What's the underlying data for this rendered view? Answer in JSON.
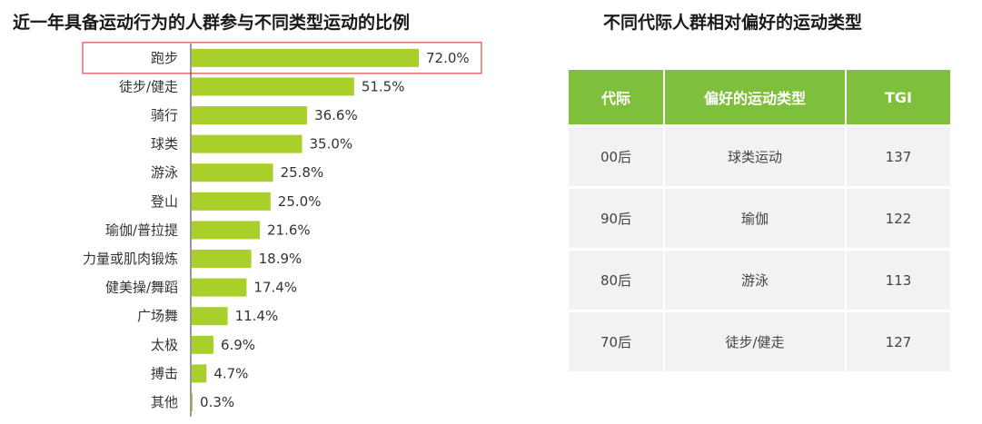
{
  "left_chart": {
    "title": "近一年具备运动行为的人群参与不同类型运动的比例"
  },
  "right_table": {
    "title": "不同代际人群相对偏好的运动类型",
    "headers": [
      "代际",
      "偏好的运动类型",
      "TGI"
    ],
    "rows": [
      [
        "00后",
        "球类运动",
        "137"
      ],
      [
        "90后",
        "瑜伽",
        "122"
      ],
      [
        "80后",
        "游泳",
        "113"
      ],
      [
        "70后",
        "徒步/健走",
        "127"
      ]
    ]
  },
  "colors": {
    "bar": "#a8cf2a",
    "header": "#7ebf3c",
    "cell": "#f2f2f2",
    "highlight": "#e05a5a",
    "axis": "#555555"
  },
  "chart_data": [
    {
      "type": "bar",
      "orientation": "horizontal",
      "title": "近一年具备运动行为的人群参与不同类型运动的比例",
      "categories": [
        "跑步",
        "徒步/健走",
        "骑行",
        "球类",
        "游泳",
        "登山",
        "瑜伽/普拉提",
        "力量或肌肉锻炼",
        "健美操/舞蹈",
        "广场舞",
        "太极",
        "搏击",
        "其他"
      ],
      "values": [
        72.0,
        51.5,
        36.6,
        35.0,
        25.8,
        25.0,
        21.6,
        18.9,
        17.4,
        11.4,
        6.9,
        4.7,
        0.3
      ],
      "value_labels": [
        "72.0%",
        "51.5%",
        "36.6%",
        "35.0%",
        "25.8%",
        "25.0%",
        "21.6%",
        "18.9%",
        "17.4%",
        "11.4%",
        "6.9%",
        "4.7%",
        "0.3%"
      ],
      "unit": "%",
      "highlighted_category": "跑步",
      "grid": false
    },
    {
      "type": "table",
      "title": "不同代际人群相对偏好的运动类型",
      "columns": [
        "代际",
        "偏好的运动类型",
        "TGI"
      ],
      "rows": [
        [
          "00后",
          "球类运动",
          137
        ],
        [
          "90后",
          "瑜伽",
          122
        ],
        [
          "80后",
          "游泳",
          113
        ],
        [
          "70后",
          "徒步/健走",
          127
        ]
      ]
    }
  ]
}
